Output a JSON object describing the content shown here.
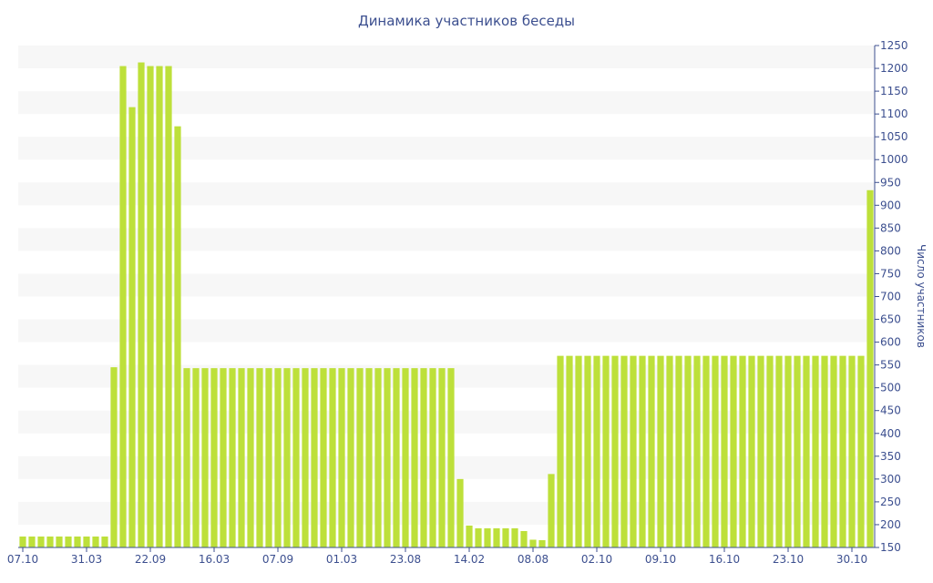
{
  "chart_data": {
    "type": "bar",
    "title": "Динамика участников беседы",
    "ylabel": "Число участников",
    "xlabel": "",
    "ylim": [
      150,
      1250
    ],
    "y_ticks": [
      150,
      200,
      250,
      300,
      350,
      400,
      450,
      500,
      550,
      600,
      650,
      700,
      750,
      800,
      850,
      900,
      950,
      1000,
      1050,
      1100,
      1150,
      1200,
      1250
    ],
    "x_tick_labels": [
      {
        "index": 0,
        "label": "07.10"
      },
      {
        "index": 7,
        "label": "31.03"
      },
      {
        "index": 14,
        "label": "22.09"
      },
      {
        "index": 21,
        "label": "16.03"
      },
      {
        "index": 28,
        "label": "07.09"
      },
      {
        "index": 35,
        "label": "01.03"
      },
      {
        "index": 42,
        "label": "23.08"
      },
      {
        "index": 49,
        "label": "14.02"
      },
      {
        "index": 56,
        "label": "08.08"
      },
      {
        "index": 63,
        "label": "02.10"
      },
      {
        "index": 70,
        "label": "09.10"
      },
      {
        "index": 77,
        "label": "16.10"
      },
      {
        "index": 84,
        "label": "23.10"
      },
      {
        "index": 91,
        "label": "30.10"
      }
    ],
    "values": [
      174,
      174,
      174,
      174,
      174,
      174,
      174,
      174,
      174,
      174,
      545,
      1205,
      1115,
      1213,
      1205,
      1205,
      1205,
      1073,
      543,
      543,
      543,
      543,
      543,
      543,
      543,
      543,
      543,
      543,
      543,
      543,
      543,
      543,
      543,
      543,
      543,
      543,
      543,
      543,
      543,
      543,
      543,
      543,
      543,
      543,
      543,
      543,
      543,
      543,
      300,
      198,
      192,
      192,
      192,
      192,
      192,
      186,
      167,
      166,
      311,
      570,
      570,
      570,
      570,
      570,
      570,
      570,
      570,
      570,
      570,
      570,
      570,
      570,
      570,
      570,
      570,
      570,
      570,
      570,
      570,
      570,
      570,
      570,
      570,
      570,
      570,
      570,
      570,
      570,
      570,
      570,
      570,
      570,
      570,
      933
    ],
    "y_axis_position": "right",
    "grid": "alternating horizontal bands",
    "bar_color": "#bde03a",
    "text_color": "#3c4f8f"
  }
}
